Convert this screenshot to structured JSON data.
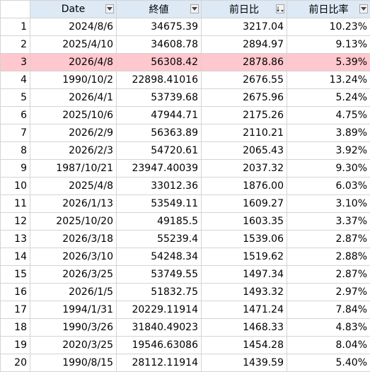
{
  "headers": [
    "Date",
    "終値",
    "前日比",
    "前日比率"
  ],
  "filter_icons": [
    "dropdown-arrow-icon",
    "dropdown-arrow-icon",
    "sort-descending-icon",
    "dropdown-arrow-icon"
  ],
  "highlight_color": "#ffc7ce",
  "header_color": "#dde9f5",
  "rows": [
    {
      "n": "1",
      "date": "2024/8/6",
      "close": "34675.39",
      "diff": "3217.04",
      "pct": "10.23%"
    },
    {
      "n": "2",
      "date": "2025/4/10",
      "close": "34608.78",
      "diff": "2894.97",
      "pct": "9.13%"
    },
    {
      "n": "3",
      "date": "2026/4/8",
      "close": "56308.42",
      "diff": "2878.86",
      "pct": "5.39%",
      "highlight": true
    },
    {
      "n": "4",
      "date": "1990/10/2",
      "close": "22898.41016",
      "diff": "2676.55",
      "pct": "13.24%"
    },
    {
      "n": "5",
      "date": "2026/4/1",
      "close": "53739.68",
      "diff": "2675.96",
      "pct": "5.24%"
    },
    {
      "n": "6",
      "date": "2025/10/6",
      "close": "47944.71",
      "diff": "2175.26",
      "pct": "4.75%"
    },
    {
      "n": "7",
      "date": "2026/2/9",
      "close": "56363.89",
      "diff": "2110.21",
      "pct": "3.89%"
    },
    {
      "n": "8",
      "date": "2026/2/3",
      "close": "54720.61",
      "diff": "2065.43",
      "pct": "3.92%"
    },
    {
      "n": "9",
      "date": "1987/10/21",
      "close": "23947.40039",
      "diff": "2037.32",
      "pct": "9.30%"
    },
    {
      "n": "10",
      "date": "2025/4/8",
      "close": "33012.36",
      "diff": "1876.00",
      "pct": "6.03%"
    },
    {
      "n": "11",
      "date": "2026/1/13",
      "close": "53549.11",
      "diff": "1609.27",
      "pct": "3.10%"
    },
    {
      "n": "12",
      "date": "2025/10/20",
      "close": "49185.5",
      "diff": "1603.35",
      "pct": "3.37%"
    },
    {
      "n": "13",
      "date": "2026/3/18",
      "close": "55239.4",
      "diff": "1539.06",
      "pct": "2.87%"
    },
    {
      "n": "14",
      "date": "2026/3/10",
      "close": "54248.34",
      "diff": "1519.62",
      "pct": "2.88%"
    },
    {
      "n": "15",
      "date": "2026/3/25",
      "close": "53749.55",
      "diff": "1497.34",
      "pct": "2.87%"
    },
    {
      "n": "16",
      "date": "2026/1/5",
      "close": "51832.75",
      "diff": "1493.32",
      "pct": "2.97%"
    },
    {
      "n": "17",
      "date": "1994/1/31",
      "close": "20229.11914",
      "diff": "1471.24",
      "pct": "7.84%"
    },
    {
      "n": "18",
      "date": "1990/3/26",
      "close": "31840.49023",
      "diff": "1468.33",
      "pct": "4.83%"
    },
    {
      "n": "19",
      "date": "2020/3/25",
      "close": "19546.63086",
      "diff": "1454.28",
      "pct": "8.04%"
    },
    {
      "n": "20",
      "date": "1990/8/15",
      "close": "28112.11914",
      "diff": "1439.59",
      "pct": "5.40%"
    }
  ]
}
